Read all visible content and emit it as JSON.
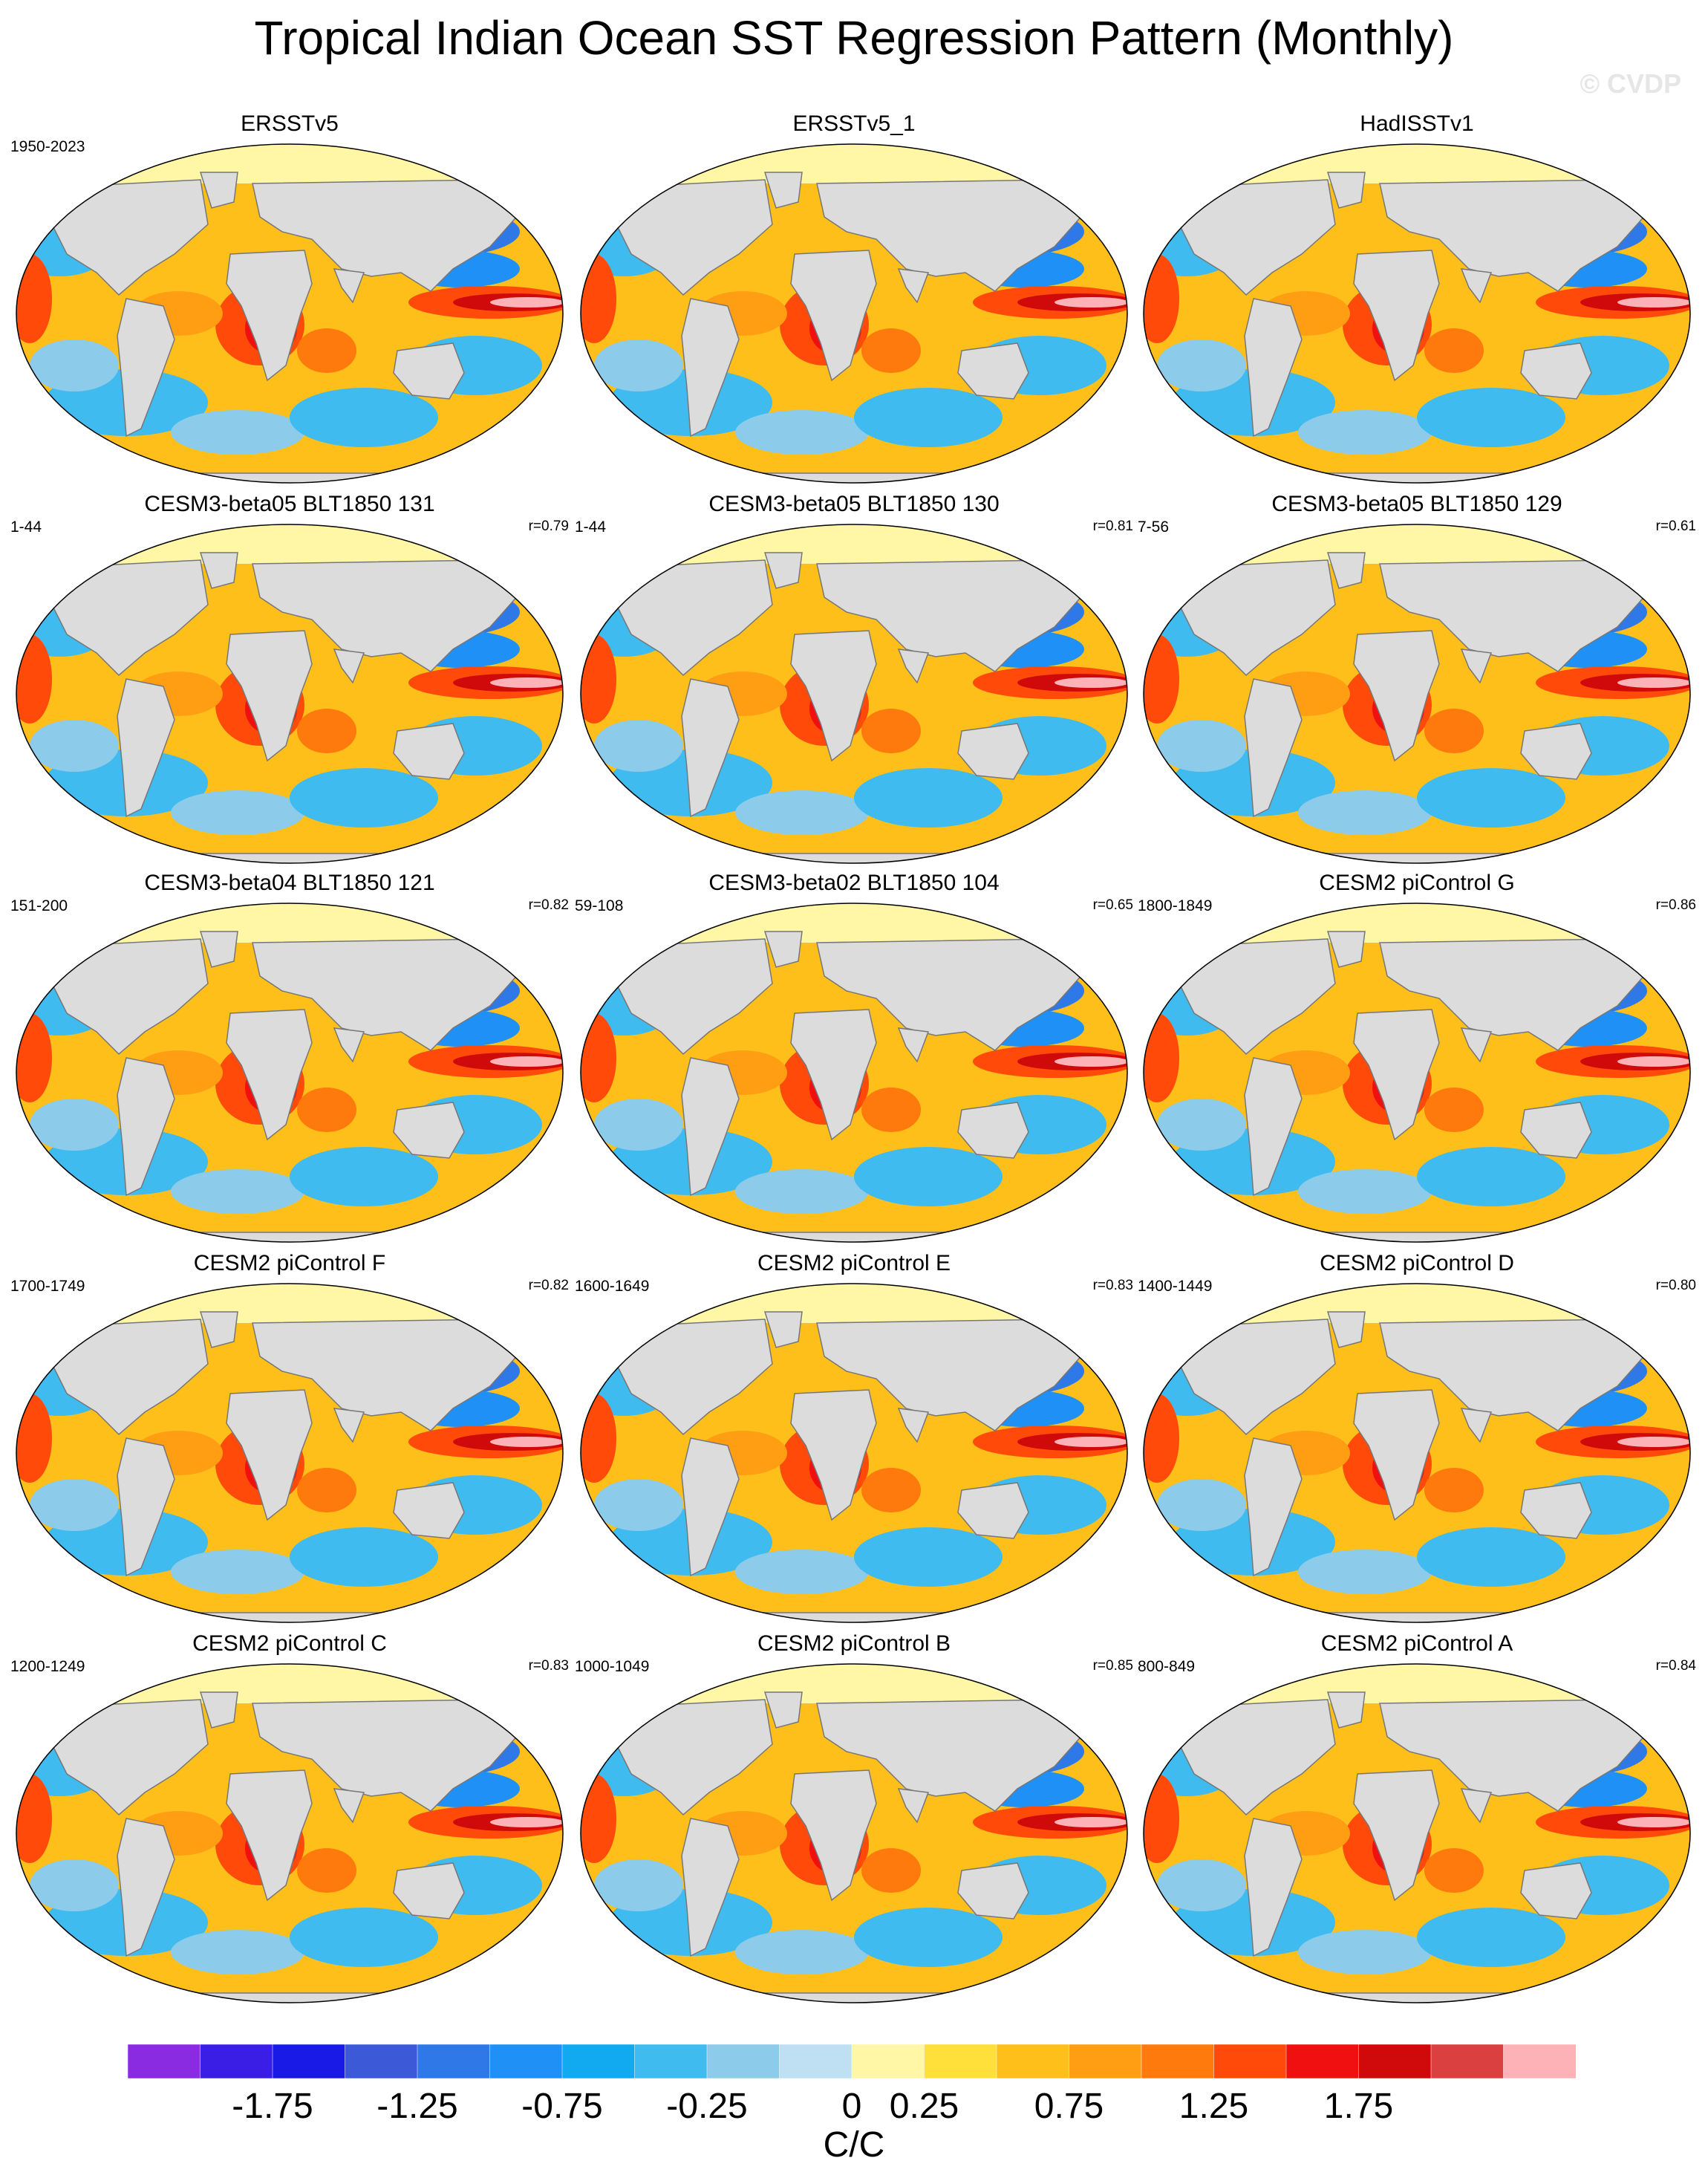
{
  "figure": {
    "title": "Tropical Indian Ocean SST Regression Pattern (Monthly)",
    "watermark": "© CVDP"
  },
  "chart_data": {
    "type": "heatmap",
    "description_type": "global map regression panels",
    "panels": [
      {
        "title": "ERSSTv5",
        "period": "1950-2023",
        "corr": ""
      },
      {
        "title": "ERSSTv5_1",
        "period": "",
        "corr": ""
      },
      {
        "title": "HadISSTv1",
        "period": "",
        "corr": ""
      },
      {
        "title": "CESM3-beta05 BLT1850 131",
        "period": "1-44",
        "corr": "r=0.79"
      },
      {
        "title": "CESM3-beta05 BLT1850 130",
        "period": "1-44",
        "corr": "r=0.81"
      },
      {
        "title": "CESM3-beta05 BLT1850 129",
        "period": "7-56",
        "corr": "r=0.61"
      },
      {
        "title": "CESM3-beta04 BLT1850 121",
        "period": "151-200",
        "corr": "r=0.82"
      },
      {
        "title": "CESM3-beta02 BLT1850 104",
        "period": "59-108",
        "corr": "r=0.65"
      },
      {
        "title": "CESM2 piControl G",
        "period": "1800-1849",
        "corr": "r=0.86"
      },
      {
        "title": "CESM2 piControl F",
        "period": "1700-1749",
        "corr": "r=0.82"
      },
      {
        "title": "CESM2 piControl E",
        "period": "1600-1649",
        "corr": "r=0.83"
      },
      {
        "title": "CESM2 piControl D",
        "period": "1400-1449",
        "corr": "r=0.80"
      },
      {
        "title": "CESM2 piControl C",
        "period": "1200-1249",
        "corr": "r=0.83"
      },
      {
        "title": "CESM2 piControl B",
        "period": "1000-1049",
        "corr": "r=0.85"
      },
      {
        "title": "CESM2 piControl A",
        "period": "800-849",
        "corr": "r=0.84"
      }
    ],
    "colorbar": {
      "unit": "C/C",
      "colors": [
        "#8a2be2",
        "#3b1ee6",
        "#1a1ae6",
        "#3c5ad7",
        "#2f78e8",
        "#1f90f5",
        "#11aaf0",
        "#3fbbef",
        "#8ccbe9",
        "#bfe0f3",
        "#fff6a6",
        "#ffdf3a",
        "#ffbf1a",
        "#ff9e12",
        "#ff7a0c",
        "#ff4a0a",
        "#f01010",
        "#d00a0a",
        "#da4040",
        "#fdb2b8"
      ],
      "tick_labels": [
        "-1.75",
        "-1.25",
        "-0.75",
        "-0.25",
        "0",
        "0.25",
        "0.75",
        "1.25",
        "1.75"
      ]
    }
  }
}
